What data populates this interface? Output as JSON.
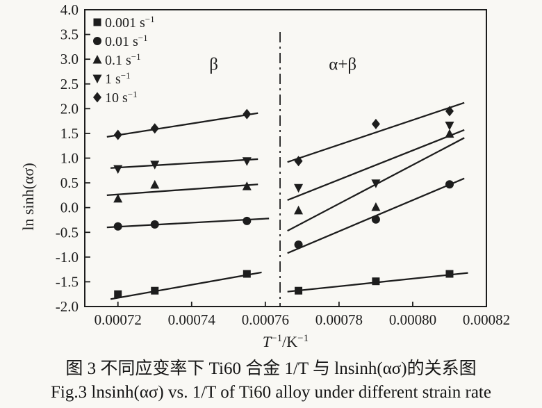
{
  "figure": {
    "background": "#f9f8f4",
    "ink": "#1d1d1d"
  },
  "captions": {
    "chinese": "图 3  不同应变率下 Ti60 合金 1/T 与 lnsinh(ασ)的关系图",
    "english": "Fig.3  lnsinh(ασ) vs. 1/T of Ti60 alloy under different strain rate"
  },
  "chart_data": {
    "type": "scatter",
    "title": "",
    "xlabel": "T⁻¹/K⁻¹",
    "xlabel_parts": [
      {
        "t": "T",
        "i": 1
      },
      {
        "t": "−1",
        "sup": 1
      },
      {
        "t": "/K"
      },
      {
        "t": "−1",
        "sup": 1
      }
    ],
    "ylabel": "ln sinh(ασ)",
    "xlim": [
      0.000711,
      0.00082
    ],
    "ylim": [
      -2.0,
      4.0
    ],
    "grid": false,
    "legend_position": "top-left",
    "xticks": [
      {
        "v": 0.00072,
        "label": "0.00072"
      },
      {
        "v": 0.00074,
        "label": "0.00074"
      },
      {
        "v": 0.00076,
        "label": "0.00076"
      },
      {
        "v": 0.00078,
        "label": "0.00078"
      },
      {
        "v": 0.0008,
        "label": "0.00080"
      },
      {
        "v": 0.00082,
        "label": "0.00082"
      }
    ],
    "yticks": [
      {
        "v": 4.0,
        "label": "4.0"
      },
      {
        "v": 3.5,
        "label": "3.5"
      },
      {
        "v": 3.0,
        "label": "3.0"
      },
      {
        "v": 2.5,
        "label": "2.5"
      },
      {
        "v": 2.0,
        "label": "2.0"
      },
      {
        "v": 1.5,
        "label": "1.5"
      },
      {
        "v": 1.0,
        "label": "1.0"
      },
      {
        "v": 0.5,
        "label": "0.5"
      },
      {
        "v": 0.0,
        "label": "0.0"
      },
      {
        "v": -0.5,
        "label": "-0.5"
      },
      {
        "v": -1.0,
        "label": "-1.0"
      },
      {
        "v": -1.5,
        "label": "-1.5"
      },
      {
        "v": -2.0,
        "label": "-2.0"
      }
    ],
    "regions": [
      {
        "label": "β",
        "x": 0.000746,
        "y": 2.9
      },
      {
        "label": "α+β",
        "x": 0.000781,
        "y": 2.9
      }
    ],
    "divider": {
      "x": 0.000764,
      "y_top": 3.55,
      "y_bottom": -2.0,
      "style": "dash-dot"
    },
    "series": [
      {
        "name": "0.001 s⁻¹",
        "legend": {
          "base": "0.001 s",
          "sup": "−1"
        },
        "marker": "square",
        "points": [
          [
            0.00072,
            -1.75
          ],
          [
            0.00073,
            -1.68
          ],
          [
            0.000755,
            -1.34
          ],
          [
            0.000769,
            -1.68
          ],
          [
            0.00079,
            -1.49
          ],
          [
            0.00081,
            -1.34
          ]
        ],
        "fit_lines": [
          [
            [
              0.000718,
              -1.85
            ],
            [
              0.000759,
              -1.31
            ]
          ],
          [
            [
              0.000766,
              -1.7
            ],
            [
              0.000815,
              -1.32
            ]
          ]
        ]
      },
      {
        "name": "0.01 s⁻¹",
        "legend": {
          "base": "0.01 s",
          "sup": "−1"
        },
        "marker": "circle",
        "points": [
          [
            0.00072,
            -0.38
          ],
          [
            0.00073,
            -0.34
          ],
          [
            0.000755,
            -0.27
          ],
          [
            0.000769,
            -0.75
          ],
          [
            0.00079,
            -0.24
          ],
          [
            0.00081,
            0.47
          ]
        ],
        "fit_lines": [
          [
            [
              0.000717,
              -0.4
            ],
            [
              0.000761,
              -0.22
            ]
          ],
          [
            [
              0.000766,
              -0.92
            ],
            [
              0.000814,
              0.59
            ]
          ]
        ]
      },
      {
        "name": "0.1 s⁻¹",
        "legend": {
          "base": "0.1 s",
          "sup": "−1"
        },
        "marker": "triangle-up",
        "points": [
          [
            0.00072,
            0.18
          ],
          [
            0.00073,
            0.46
          ],
          [
            0.000755,
            0.43
          ],
          [
            0.000769,
            -0.06
          ],
          [
            0.00079,
            0.01
          ],
          [
            0.00081,
            1.49
          ]
        ],
        "fit_lines": [
          [
            [
              0.000717,
              0.25
            ],
            [
              0.000758,
              0.47
            ]
          ],
          [
            [
              0.000766,
              -0.47
            ],
            [
              0.000814,
              1.41
            ]
          ]
        ]
      },
      {
        "name": "1 s⁻¹",
        "legend": {
          "base": "1 s",
          "sup": "−1"
        },
        "marker": "triangle-down",
        "points": [
          [
            0.00072,
            0.78
          ],
          [
            0.00073,
            0.87
          ],
          [
            0.000755,
            0.94
          ],
          [
            0.000769,
            0.4
          ],
          [
            0.00079,
            0.49
          ],
          [
            0.00081,
            1.66
          ]
        ],
        "fit_lines": [
          [
            [
              0.000718,
              0.8
            ],
            [
              0.000758,
              0.98
            ]
          ],
          [
            [
              0.000766,
              0.15
            ],
            [
              0.000814,
              1.57
            ]
          ]
        ]
      },
      {
        "name": "10 s⁻¹",
        "legend": {
          "base": "10 s",
          "sup": "−1"
        },
        "marker": "diamond",
        "points": [
          [
            0.00072,
            1.47
          ],
          [
            0.00073,
            1.6
          ],
          [
            0.000755,
            1.89
          ],
          [
            0.000769,
            0.94
          ],
          [
            0.00079,
            1.69
          ],
          [
            0.00081,
            1.95
          ]
        ],
        "fit_lines": [
          [
            [
              0.000717,
              1.43
            ],
            [
              0.000758,
              1.91
            ]
          ],
          [
            [
              0.000766,
              0.92
            ],
            [
              0.000814,
              2.12
            ]
          ]
        ]
      }
    ]
  }
}
